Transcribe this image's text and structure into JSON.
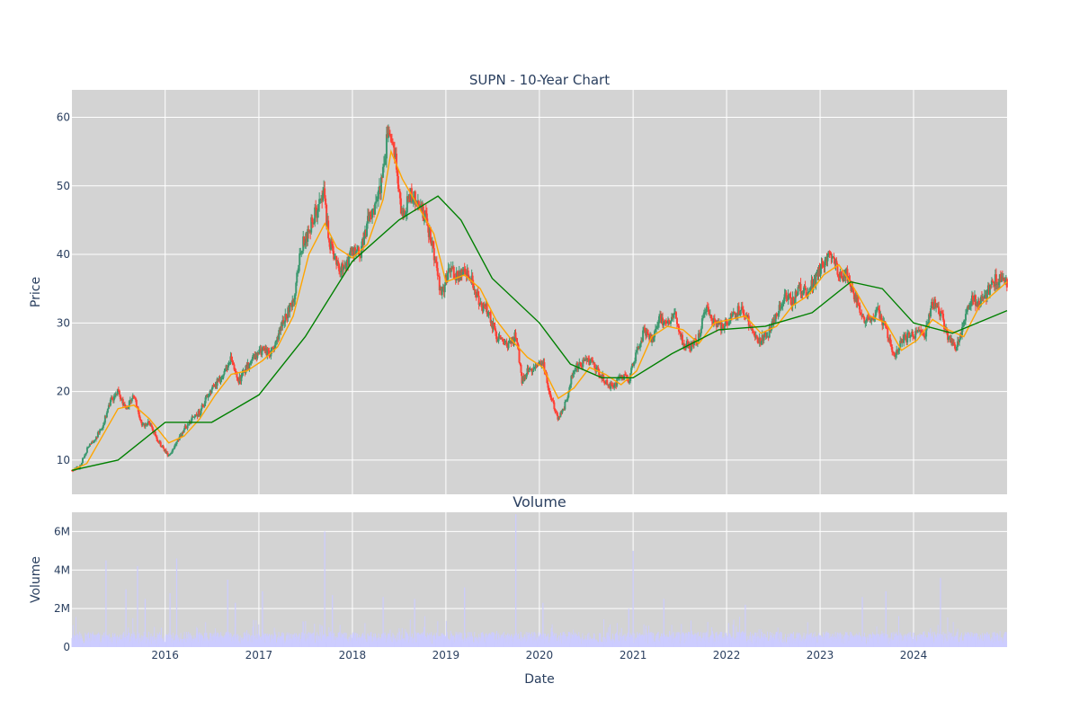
{
  "chart_data": [
    {
      "type": "candlestick",
      "title": "SUPN - 10-Year Chart",
      "ylabel": "Price",
      "ylim": [
        5,
        64
      ],
      "yticks": [
        10,
        20,
        30,
        40,
        50,
        60
      ],
      "grid": true,
      "legend": "none",
      "colors": {
        "background": "#d3d3d3",
        "grid": "#ffffff",
        "up": "#3d9970",
        "down": "#ff4136",
        "ma_short": "#ffa500",
        "ma_long": "#008000"
      },
      "close_path": [
        [
          "2015-01-02",
          8.5
        ],
        [
          "2015-02-01",
          9.0
        ],
        [
          "2015-03-01",
          11.5
        ],
        [
          "2015-04-01",
          13.0
        ],
        [
          "2015-05-01",
          15.0
        ],
        [
          "2015-06-01",
          18.5
        ],
        [
          "2015-07-01",
          20.0
        ],
        [
          "2015-08-01",
          17.5
        ],
        [
          "2015-09-01",
          19.5
        ],
        [
          "2015-10-01",
          15.0
        ],
        [
          "2015-11-01",
          15.5
        ],
        [
          "2015-12-01",
          13.0
        ],
        [
          "2016-01-15",
          10.5
        ],
        [
          "2016-02-15",
          12.5
        ],
        [
          "2016-03-15",
          14.5
        ],
        [
          "2016-04-15",
          16.0
        ],
        [
          "2016-05-15",
          17.0
        ],
        [
          "2016-06-15",
          19.5
        ],
        [
          "2016-07-15",
          21.0
        ],
        [
          "2016-08-15",
          22.5
        ],
        [
          "2016-09-15",
          25.0
        ],
        [
          "2016-10-15",
          21.5
        ],
        [
          "2016-11-15",
          23.5
        ],
        [
          "2016-12-15",
          25.0
        ],
        [
          "2017-01-15",
          26.0
        ],
        [
          "2017-02-15",
          25.5
        ],
        [
          "2017-03-15",
          28.0
        ],
        [
          "2017-04-15",
          31.0
        ],
        [
          "2017-05-15",
          33.0
        ],
        [
          "2017-06-15",
          41.0
        ],
        [
          "2017-07-15",
          43.5
        ],
        [
          "2017-08-15",
          46.5
        ],
        [
          "2017-09-10",
          49.0
        ],
        [
          "2017-10-01",
          42.0
        ],
        [
          "2017-11-01",
          38.5
        ],
        [
          "2017-12-01",
          38.0
        ],
        [
          "2018-01-01",
          41.0
        ],
        [
          "2018-02-01",
          40.0
        ],
        [
          "2018-03-01",
          44.5
        ],
        [
          "2018-04-01",
          46.5
        ],
        [
          "2018-05-01",
          52.0
        ],
        [
          "2018-05-20",
          58.0
        ],
        [
          "2018-06-15",
          54.5
        ],
        [
          "2018-07-15",
          45.0
        ],
        [
          "2018-08-15",
          49.0
        ],
        [
          "2018-09-15",
          47.0
        ],
        [
          "2018-10-15",
          45.5
        ],
        [
          "2018-11-15",
          40.0
        ],
        [
          "2018-12-15",
          34.0
        ],
        [
          "2019-01-15",
          38.0
        ],
        [
          "2019-02-15",
          36.5
        ],
        [
          "2019-03-15",
          38.0
        ],
        [
          "2019-04-15",
          36.0
        ],
        [
          "2019-05-15",
          32.5
        ],
        [
          "2019-06-15",
          32.0
        ],
        [
          "2019-07-15",
          28.0
        ],
        [
          "2019-08-15",
          27.0
        ],
        [
          "2019-09-15",
          27.0
        ],
        [
          "2019-10-01",
          28.5
        ],
        [
          "2019-10-25",
          21.5
        ],
        [
          "2019-11-15",
          23.0
        ],
        [
          "2019-12-15",
          23.5
        ],
        [
          "2020-01-15",
          24.5
        ],
        [
          "2020-02-15",
          19.0
        ],
        [
          "2020-03-15",
          16.0
        ],
        [
          "2020-04-15",
          18.5
        ],
        [
          "2020-05-15",
          23.5
        ],
        [
          "2020-06-15",
          24.0
        ],
        [
          "2020-07-15",
          24.5
        ],
        [
          "2020-08-15",
          23.0
        ],
        [
          "2020-09-15",
          21.5
        ],
        [
          "2020-10-15",
          20.5
        ],
        [
          "2020-11-15",
          22.5
        ],
        [
          "2020-12-15",
          21.5
        ],
        [
          "2021-01-15",
          26.0
        ],
        [
          "2021-02-15",
          29.0
        ],
        [
          "2021-03-15",
          27.5
        ],
        [
          "2021-04-15",
          30.5
        ],
        [
          "2021-05-15",
          30.0
        ],
        [
          "2021-06-15",
          31.0
        ],
        [
          "2021-07-15",
          27.0
        ],
        [
          "2021-08-15",
          26.5
        ],
        [
          "2021-09-15",
          28.0
        ],
        [
          "2021-10-15",
          33.0
        ],
        [
          "2021-11-15",
          30.0
        ],
        [
          "2021-12-15",
          29.5
        ],
        [
          "2022-01-15",
          30.5
        ],
        [
          "2022-02-15",
          32.0
        ],
        [
          "2022-03-15",
          31.5
        ],
        [
          "2022-04-15",
          28.0
        ],
        [
          "2022-05-15",
          27.5
        ],
        [
          "2022-06-15",
          28.5
        ],
        [
          "2022-07-15",
          31.0
        ],
        [
          "2022-08-15",
          34.0
        ],
        [
          "2022-09-15",
          33.0
        ],
        [
          "2022-10-15",
          35.0
        ],
        [
          "2022-11-15",
          34.5
        ],
        [
          "2022-12-15",
          36.5
        ],
        [
          "2023-01-15",
          39.0
        ],
        [
          "2023-02-15",
          40.5
        ],
        [
          "2023-03-15",
          36.5
        ],
        [
          "2023-04-15",
          37.0
        ],
        [
          "2023-05-15",
          34.0
        ],
        [
          "2023-06-15",
          31.0
        ],
        [
          "2023-07-15",
          30.0
        ],
        [
          "2023-08-15",
          31.5
        ],
        [
          "2023-09-15",
          29.0
        ],
        [
          "2023-10-15",
          25.0
        ],
        [
          "2023-11-15",
          27.5
        ],
        [
          "2023-12-15",
          28.0
        ],
        [
          "2024-01-15",
          28.5
        ],
        [
          "2024-02-15",
          28.5
        ],
        [
          "2024-03-15",
          33.0
        ],
        [
          "2024-04-15",
          31.5
        ],
        [
          "2024-05-15",
          28.0
        ],
        [
          "2024-06-15",
          26.5
        ],
        [
          "2024-07-15",
          30.0
        ],
        [
          "2024-08-15",
          33.5
        ],
        [
          "2024-09-15",
          33.0
        ],
        [
          "2024-10-15",
          34.5
        ],
        [
          "2024-11-15",
          36.5
        ],
        [
          "2024-12-31",
          36.0
        ]
      ],
      "ma_short": [
        [
          "2015-01-02",
          8.5
        ],
        [
          "2015-03-01",
          9.5
        ],
        [
          "2015-05-01",
          13.5
        ],
        [
          "2015-07-01",
          17.5
        ],
        [
          "2015-09-01",
          18.0
        ],
        [
          "2015-11-01",
          16.0
        ],
        [
          "2016-01-15",
          12.5
        ],
        [
          "2016-03-15",
          13.5
        ],
        [
          "2016-05-15",
          16.0
        ],
        [
          "2016-07-15",
          19.5
        ],
        [
          "2016-09-15",
          22.5
        ],
        [
          "2016-11-15",
          23.0
        ],
        [
          "2017-01-15",
          24.5
        ],
        [
          "2017-03-15",
          26.5
        ],
        [
          "2017-05-15",
          31.0
        ],
        [
          "2017-07-15",
          40.0
        ],
        [
          "2017-09-15",
          44.5
        ],
        [
          "2017-11-01",
          41.0
        ],
        [
          "2018-01-01",
          39.5
        ],
        [
          "2018-03-01",
          41.5
        ],
        [
          "2018-05-01",
          48.0
        ],
        [
          "2018-06-01",
          55.0
        ],
        [
          "2018-07-15",
          51.0
        ],
        [
          "2018-09-15",
          47.0
        ],
        [
          "2018-11-15",
          43.0
        ],
        [
          "2019-01-01",
          36.0
        ],
        [
          "2019-03-15",
          37.0
        ],
        [
          "2019-05-15",
          35.0
        ],
        [
          "2019-07-15",
          30.5
        ],
        [
          "2019-09-15",
          27.5
        ],
        [
          "2019-11-15",
          25.0
        ],
        [
          "2020-01-15",
          23.5
        ],
        [
          "2020-03-15",
          19.0
        ],
        [
          "2020-05-15",
          20.5
        ],
        [
          "2020-07-15",
          23.5
        ],
        [
          "2020-09-15",
          22.5
        ],
        [
          "2020-11-15",
          21.0
        ],
        [
          "2021-01-15",
          23.0
        ],
        [
          "2021-03-15",
          28.0
        ],
        [
          "2021-05-15",
          29.5
        ],
        [
          "2021-07-15",
          29.0
        ],
        [
          "2021-09-15",
          27.0
        ],
        [
          "2021-11-15",
          30.0
        ],
        [
          "2022-01-15",
          30.5
        ],
        [
          "2022-03-15",
          31.0
        ],
        [
          "2022-05-15",
          28.5
        ],
        [
          "2022-07-15",
          29.5
        ],
        [
          "2022-09-15",
          32.5
        ],
        [
          "2022-11-15",
          34.0
        ],
        [
          "2023-01-15",
          37.0
        ],
        [
          "2023-03-15",
          38.5
        ],
        [
          "2023-05-15",
          35.0
        ],
        [
          "2023-07-15",
          31.0
        ],
        [
          "2023-09-15",
          30.0
        ],
        [
          "2023-11-15",
          26.0
        ],
        [
          "2024-01-15",
          27.5
        ],
        [
          "2024-03-15",
          30.5
        ],
        [
          "2024-05-15",
          29.0
        ],
        [
          "2024-07-15",
          28.0
        ],
        [
          "2024-09-15",
          32.5
        ],
        [
          "2024-12-31",
          36.0
        ]
      ],
      "ma_long": [
        [
          "2015-01-02",
          8.5
        ],
        [
          "2015-07-01",
          10.0
        ],
        [
          "2016-01-01",
          15.5
        ],
        [
          "2016-07-01",
          15.5
        ],
        [
          "2017-01-01",
          19.5
        ],
        [
          "2017-07-01",
          28.0
        ],
        [
          "2018-01-01",
          39.0
        ],
        [
          "2018-07-01",
          45.0
        ],
        [
          "2018-12-01",
          48.5
        ],
        [
          "2019-03-01",
          45.0
        ],
        [
          "2019-07-01",
          36.5
        ],
        [
          "2020-01-01",
          30.0
        ],
        [
          "2020-05-01",
          24.0
        ],
        [
          "2020-09-01",
          22.0
        ],
        [
          "2021-01-01",
          22.0
        ],
        [
          "2021-06-01",
          25.5
        ],
        [
          "2021-12-01",
          29.0
        ],
        [
          "2022-06-01",
          29.5
        ],
        [
          "2022-12-01",
          31.5
        ],
        [
          "2023-05-01",
          36.0
        ],
        [
          "2023-09-01",
          35.0
        ],
        [
          "2024-01-01",
          30.0
        ],
        [
          "2024-06-01",
          28.5
        ],
        [
          "2024-12-31",
          31.8
        ]
      ]
    },
    {
      "type": "bar",
      "title": "Volume",
      "xlabel": "Date",
      "ylabel": "Volume",
      "ylim": [
        0,
        7000000
      ],
      "yticks": [
        0,
        2000000,
        4000000,
        6000000
      ],
      "ytick_labels": [
        "0",
        "2M",
        "4M",
        "6M"
      ],
      "xlim": [
        "2015-01-02",
        "2024-12-31"
      ],
      "xticks": [
        "2016-01-01",
        "2017-01-01",
        "2018-01-01",
        "2019-01-01",
        "2020-01-01",
        "2021-01-01",
        "2022-01-01",
        "2023-01-01",
        "2024-01-01"
      ],
      "xtick_labels": [
        "2016",
        "2017",
        "2018",
        "2019",
        "2020",
        "2021",
        "2022",
        "2023",
        "2024"
      ],
      "grid": true,
      "colors": {
        "bars": "#ccccff",
        "background": "#d3d3d3"
      },
      "spikes": [
        [
          "2015-05-15",
          4500000
        ],
        [
          "2015-08-01",
          3000000
        ],
        [
          "2015-09-15",
          4200000
        ],
        [
          "2015-10-15",
          2500000
        ],
        [
          "2016-01-20",
          2800000
        ],
        [
          "2016-02-15",
          4600000
        ],
        [
          "2016-09-01",
          3500000
        ],
        [
          "2016-10-01",
          2300000
        ],
        [
          "2017-01-15",
          2900000
        ],
        [
          "2017-09-15",
          6000000
        ],
        [
          "2017-10-15",
          2700000
        ],
        [
          "2018-05-01",
          2600000
        ],
        [
          "2018-09-01",
          2500000
        ],
        [
          "2019-03-15",
          3100000
        ],
        [
          "2019-10-01",
          6900000
        ],
        [
          "2020-01-15",
          2300000
        ],
        [
          "2020-12-15",
          2000000
        ],
        [
          "2021-01-01",
          5000000
        ],
        [
          "2021-05-01",
          2500000
        ],
        [
          "2022-03-15",
          2200000
        ],
        [
          "2023-06-15",
          2600000
        ],
        [
          "2023-09-15",
          2900000
        ],
        [
          "2024-04-15",
          3600000
        ]
      ]
    }
  ]
}
